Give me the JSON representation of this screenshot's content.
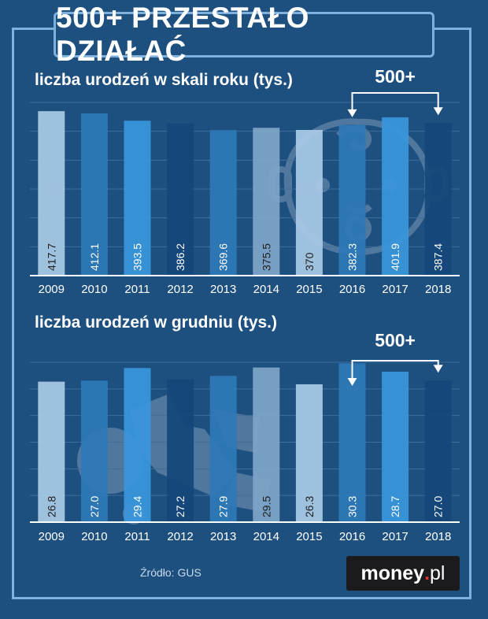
{
  "title": "500+ PRZESTAŁO DZIAŁAĆ",
  "source": "Źródło: GUS",
  "logo": {
    "name": "money",
    "dot": ".",
    "tld": "pl"
  },
  "bar_colors": [
    "#a9cbe6",
    "#2e7ab8",
    "#3897dc",
    "#15467a",
    "#2e7ab8",
    "#7fa6c9",
    "#a9cbe6",
    "#2e7ab8",
    "#3897dc",
    "#15467a"
  ],
  "label_colors": [
    "#1f1f1f",
    "#ffffff",
    "#ffffff",
    "#ffffff",
    "#ffffff",
    "#1f1f1f",
    "#1f1f1f",
    "#ffffff",
    "#ffffff",
    "#ffffff"
  ],
  "chart_data": [
    {
      "type": "bar",
      "title": "liczba urodzeń w skali roku (tys.)",
      "categories": [
        "2009",
        "2010",
        "2011",
        "2012",
        "2013",
        "2014",
        "2015",
        "2016",
        "2017",
        "2018"
      ],
      "values": [
        417.7,
        412.1,
        393.5,
        386.2,
        369.6,
        375.5,
        370,
        382.3,
        401.9,
        387.4
      ],
      "value_labels": [
        "417.7",
        "412.1",
        "393.5",
        "386.2",
        "369.6",
        "375.5",
        "370",
        "382.3",
        "401.9",
        "387.4"
      ],
      "ylim": [
        0,
        420
      ],
      "grid": true,
      "annotation": {
        "text": "500+",
        "from": "2016",
        "to": "2018"
      }
    },
    {
      "type": "bar",
      "title": "liczba urodzeń w grudniu (tys.)",
      "categories": [
        "2009",
        "2010",
        "2011",
        "2012",
        "2013",
        "2014",
        "2015",
        "2016",
        "2017",
        "2018"
      ],
      "values": [
        26.8,
        27.0,
        29.4,
        27.2,
        27.9,
        29.5,
        26.3,
        30.3,
        28.7,
        27.0
      ],
      "value_labels": [
        "26.8",
        "27.0",
        "29.4",
        "27.2",
        "27.9",
        "29.5",
        "26.3",
        "30.3",
        "28.7",
        "27.0"
      ],
      "ylim": [
        0,
        30.5
      ],
      "grid": true,
      "annotation": {
        "text": "500+",
        "from": "2016",
        "to": "2018"
      }
    }
  ]
}
